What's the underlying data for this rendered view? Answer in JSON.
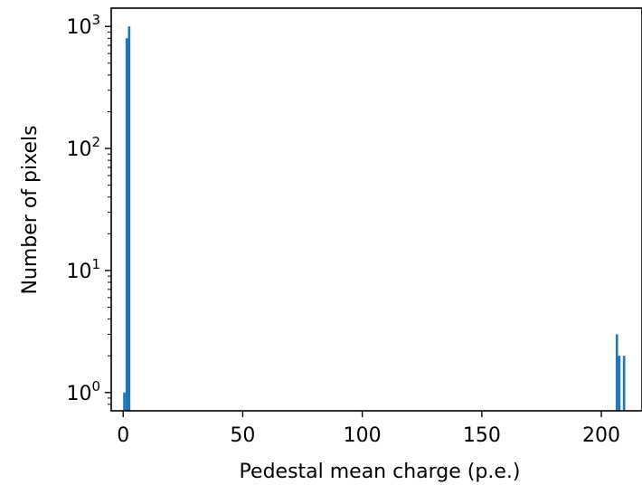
{
  "chart_data": {
    "type": "bar",
    "title": "",
    "xlabel": "Pedestal mean charge (p.e.)",
    "ylabel": "Number of pixels",
    "xlim": [
      -5,
      217
    ],
    "ylim_log10": [
      -0.15,
      3.15
    ],
    "yscale": "log",
    "grid": false,
    "bar_color": "#1f77b4",
    "bin_width": 1,
    "bins": [
      {
        "x": 0.5,
        "count": 1
      },
      {
        "x": 1.5,
        "count": 800
      },
      {
        "x": 2.5,
        "count": 1000
      },
      {
        "x": 206.5,
        "count": 3
      },
      {
        "x": 207.5,
        "count": 2
      },
      {
        "x": 209.5,
        "count": 2
      }
    ],
    "x_ticks": [
      {
        "value": 0,
        "label": "0"
      },
      {
        "value": 50,
        "label": "50"
      },
      {
        "value": 100,
        "label": "100"
      },
      {
        "value": 150,
        "label": "150"
      },
      {
        "value": 200,
        "label": "200"
      }
    ],
    "y_ticks": [
      {
        "value": 1,
        "base": "10",
        "exp": "0"
      },
      {
        "value": 10,
        "base": "10",
        "exp": "1"
      },
      {
        "value": 100,
        "base": "10",
        "exp": "2"
      },
      {
        "value": 1000,
        "base": "10",
        "exp": "3"
      }
    ]
  }
}
